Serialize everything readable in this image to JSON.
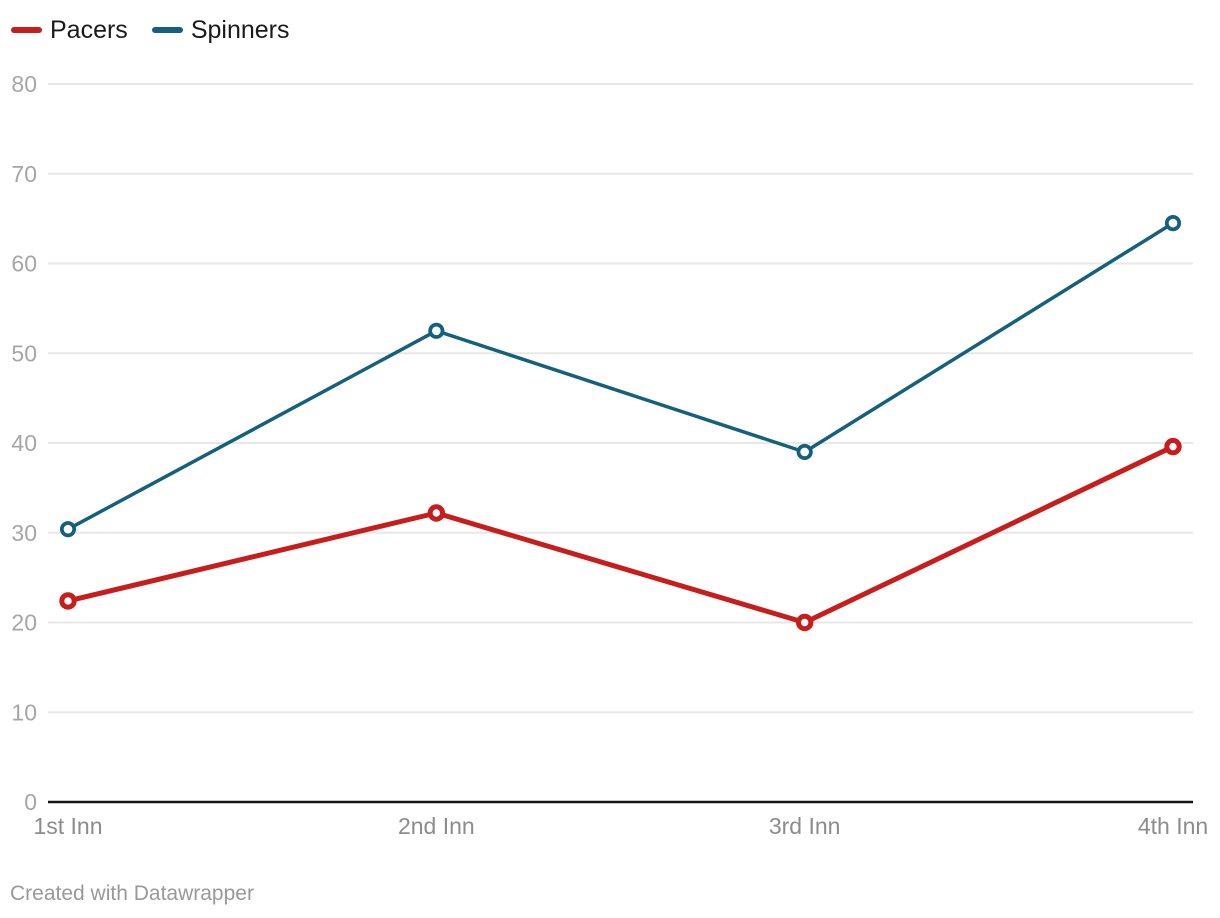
{
  "legend": {
    "items": [
      {
        "label": "Pacers",
        "color": "#c71e1d"
      },
      {
        "label": "Spinners",
        "color": "#15607a"
      }
    ]
  },
  "chart_data": {
    "type": "line",
    "categories": [
      "1st Inn",
      "2nd Inn",
      "3rd Inn",
      "4th Inn"
    ],
    "series": [
      {
        "name": "Pacers",
        "color": "#c71e1d",
        "values": [
          22.4,
          32.2,
          20.0,
          39.6
        ]
      },
      {
        "name": "Spinners",
        "color": "#15607a",
        "values": [
          30.4,
          52.5,
          39.0,
          64.5
        ]
      }
    ],
    "title": "",
    "xlabel": "",
    "ylabel": "",
    "ylim": [
      0,
      80
    ],
    "yticks": [
      0,
      10,
      20,
      30,
      40,
      50,
      60,
      70,
      80
    ],
    "grid": true,
    "legend_position": "top-left",
    "marker": "open-circle",
    "baseline_color": "#141414",
    "gridline_color": "#e8e8e8"
  },
  "footer": {
    "text": "Created with Datawrapper"
  }
}
